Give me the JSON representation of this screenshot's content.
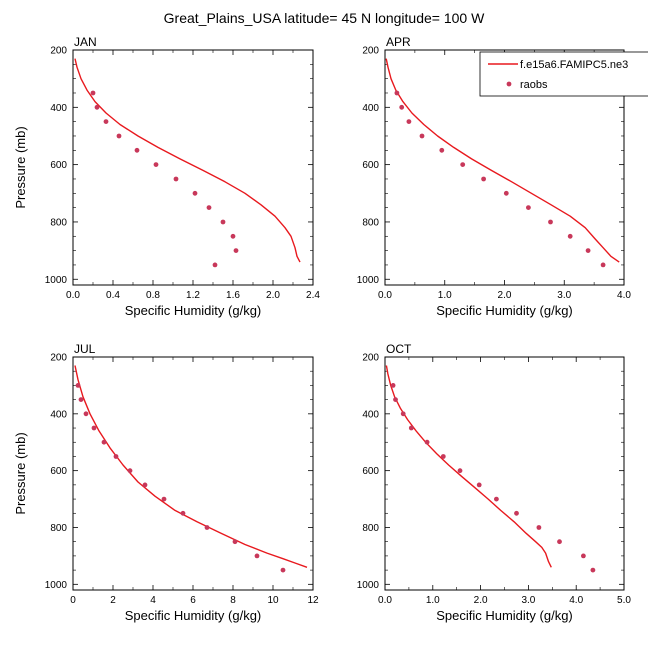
{
  "figure_title": "Great_Plains_USA  latitude= 45 N longitude= 100 W",
  "legend": {
    "model_label": "f.e15a6.FAMIPC5.ne3",
    "obs_label": "raobs"
  },
  "colors": {
    "model_line": "#e8191e",
    "obs_marker": "#c8385a",
    "axis": "#000000"
  },
  "chart_data": [
    {
      "type": "line",
      "title": "JAN",
      "xlabel": "Specific Humidity (g/kg)",
      "ylabel": "Pressure (mb)",
      "xlim": [
        0,
        2.4
      ],
      "ylim": [
        1020,
        200
      ],
      "xticks": [
        0,
        0.4,
        0.8,
        1.2,
        1.6,
        2.0,
        2.4
      ],
      "xtick_labels": [
        "0.0",
        "0.4",
        "0.8",
        "1.2",
        "1.6",
        "2.0",
        "2.4"
      ],
      "yticks": [
        200,
        400,
        600,
        800,
        1000
      ],
      "ytick_labels": [
        "200",
        "400",
        "600",
        "800",
        "1000"
      ],
      "series": [
        {
          "name": "f.e15a6.FAMIPC5.ne3",
          "kind": "line",
          "x": [
            0.02,
            0.04,
            0.08,
            0.14,
            0.22,
            0.33,
            0.47,
            0.65,
            0.85,
            1.07,
            1.3,
            1.52,
            1.72,
            1.88,
            2.02,
            2.12,
            2.18,
            2.22,
            2.24,
            2.27
          ],
          "y": [
            230,
            260,
            300,
            340,
            380,
            420,
            460,
            500,
            540,
            580,
            620,
            660,
            700,
            740,
            780,
            820,
            850,
            890,
            920,
            940
          ]
        },
        {
          "name": "raobs",
          "kind": "scatter",
          "x": [
            0.2,
            0.24,
            0.33,
            0.46,
            0.64,
            0.83,
            1.03,
            1.22,
            1.36,
            1.5,
            1.6,
            1.63,
            1.42
          ],
          "y": [
            350,
            400,
            450,
            500,
            550,
            600,
            650,
            700,
            750,
            800,
            850,
            900,
            950
          ]
        }
      ]
    },
    {
      "type": "line",
      "title": "APR",
      "xlabel": "Specific Humidity (g/kg)",
      "ylabel": "",
      "xlim": [
        0,
        4.0
      ],
      "ylim": [
        1020,
        200
      ],
      "xticks": [
        0,
        1.0,
        2.0,
        3.0,
        4.0
      ],
      "xtick_labels": [
        "0.0",
        "1.0",
        "2.0",
        "3.0",
        "4.0"
      ],
      "yticks": [
        200,
        400,
        600,
        800,
        1000
      ],
      "ytick_labels": [
        "200",
        "400",
        "600",
        "800",
        "1000"
      ],
      "series": [
        {
          "name": "f.e15a6.FAMIPC5.ne3",
          "kind": "line",
          "x": [
            0.02,
            0.05,
            0.1,
            0.18,
            0.3,
            0.45,
            0.65,
            0.88,
            1.15,
            1.45,
            1.78,
            2.12,
            2.45,
            2.78,
            3.1,
            3.35,
            3.52,
            3.65,
            3.78,
            3.92
          ],
          "y": [
            230,
            260,
            300,
            340,
            380,
            420,
            460,
            500,
            540,
            580,
            620,
            660,
            700,
            740,
            780,
            820,
            860,
            890,
            920,
            940
          ]
        },
        {
          "name": "raobs",
          "kind": "scatter",
          "x": [
            0.2,
            0.28,
            0.4,
            0.62,
            0.95,
            1.3,
            1.65,
            2.03,
            2.4,
            2.77,
            3.1,
            3.4,
            3.65
          ],
          "y": [
            350,
            400,
            450,
            500,
            550,
            600,
            650,
            700,
            750,
            800,
            850,
            900,
            950
          ]
        }
      ]
    },
    {
      "type": "line",
      "title": "JUL",
      "xlabel": "Specific Humidity (g/kg)",
      "ylabel": "Pressure (mb)",
      "xlim": [
        0,
        12
      ],
      "ylim": [
        1020,
        200
      ],
      "xticks": [
        0,
        2,
        4,
        6,
        8,
        10,
        12
      ],
      "xtick_labels": [
        "0",
        "2",
        "4",
        "6",
        "8",
        "10",
        "12"
      ],
      "yticks": [
        200,
        400,
        600,
        800,
        1000
      ],
      "ytick_labels": [
        "200",
        "400",
        "600",
        "800",
        "1000"
      ],
      "series": [
        {
          "name": "f.e15a6.FAMIPC5.ne3",
          "kind": "line",
          "x": [
            0.1,
            0.25,
            0.5,
            0.85,
            1.3,
            1.85,
            2.5,
            3.25,
            4.1,
            5.1,
            6.2,
            7.4,
            8.6,
            9.7,
            10.5,
            11.1,
            11.7
          ],
          "y": [
            230,
            280,
            340,
            400,
            460,
            520,
            580,
            640,
            690,
            740,
            780,
            820,
            860,
            890,
            910,
            925,
            940
          ]
        },
        {
          "name": "raobs",
          "kind": "scatter",
          "x": [
            0.25,
            0.4,
            0.65,
            1.05,
            1.55,
            2.15,
            2.85,
            3.6,
            4.55,
            5.5,
            6.7,
            8.1,
            9.2,
            10.5
          ],
          "y": [
            300,
            350,
            400,
            450,
            500,
            550,
            600,
            650,
            700,
            750,
            800,
            850,
            900,
            950
          ]
        }
      ]
    },
    {
      "type": "line",
      "title": "OCT",
      "xlabel": "Specific Humidity (g/kg)",
      "ylabel": "",
      "xlim": [
        0,
        5.0
      ],
      "ylim": [
        1020,
        200
      ],
      "xticks": [
        0,
        1.0,
        2.0,
        3.0,
        4.0,
        5.0
      ],
      "xtick_labels": [
        "0.0",
        "1.0",
        "2.0",
        "3.0",
        "4.0",
        "5.0"
      ],
      "yticks": [
        200,
        400,
        600,
        800,
        1000
      ],
      "ytick_labels": [
        "200",
        "400",
        "600",
        "800",
        "1000"
      ],
      "series": [
        {
          "name": "f.e15a6.FAMIPC5.ne3",
          "kind": "line",
          "x": [
            0.03,
            0.06,
            0.12,
            0.2,
            0.32,
            0.47,
            0.65,
            0.85,
            1.08,
            1.33,
            1.6,
            1.88,
            2.16,
            2.42,
            2.7,
            2.95,
            3.15,
            3.28,
            3.36,
            3.42,
            3.48
          ],
          "y": [
            230,
            260,
            300,
            340,
            380,
            420,
            460,
            500,
            540,
            580,
            620,
            660,
            700,
            740,
            780,
            820,
            850,
            870,
            890,
            920,
            940
          ]
        },
        {
          "name": "raobs",
          "kind": "scatter",
          "x": [
            0.17,
            0.22,
            0.38,
            0.55,
            0.88,
            1.22,
            1.57,
            1.97,
            2.33,
            2.75,
            3.22,
            3.65,
            4.15,
            4.35
          ],
          "y": [
            300,
            350,
            400,
            450,
            500,
            550,
            600,
            650,
            700,
            750,
            800,
            850,
            900,
            950
          ]
        }
      ]
    }
  ]
}
